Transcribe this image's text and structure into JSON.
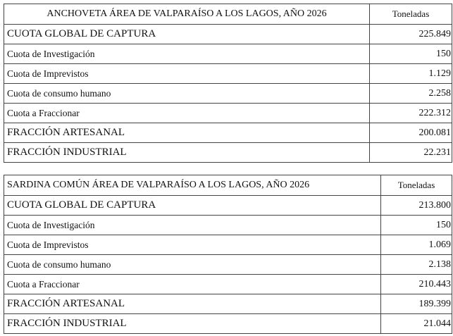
{
  "tables": [
    {
      "title": "ANCHOVETA ÁREA DE VALPARAÍSO A LOS LAGOS, AÑO 2026",
      "unit_header": "Toneladas",
      "rows": [
        {
          "label": "CUOTA GLOBAL DE CAPTURA",
          "value": "225.849"
        },
        {
          "label": "Cuota de Investigación",
          "value": "150"
        },
        {
          "label": "Cuota de Imprevistos",
          "value": "1.129"
        },
        {
          "label": "Cuota de consumo humano",
          "value": "2.258"
        },
        {
          "label": "Cuota a Fraccionar",
          "value": "222.312"
        },
        {
          "label": "FRACCIÓN ARTESANAL",
          "value": "200.081"
        },
        {
          "label": "FRACCIÓN INDUSTRIAL",
          "value": "22.231"
        }
      ]
    },
    {
      "title": "SARDINA COMÚN ÁREA DE VALPARAÍSO A LOS LAGOS, AÑO 2026",
      "unit_header": "Toneladas",
      "rows": [
        {
          "label": "CUOTA GLOBAL DE CAPTURA",
          "value": "213.800"
        },
        {
          "label": "Cuota de Investigación",
          "value": "150"
        },
        {
          "label": "Cuota de Imprevistos",
          "value": "1.069"
        },
        {
          "label": "Cuota de consumo humano",
          "value": "2.138"
        },
        {
          "label": "Cuota a Fraccionar",
          "value": "210.443"
        },
        {
          "label": "FRACCIÓN ARTESANAL",
          "value": "189.399"
        },
        {
          "label": "FRACCIÓN INDUSTRIAL",
          "value": "21.044"
        }
      ]
    }
  ]
}
